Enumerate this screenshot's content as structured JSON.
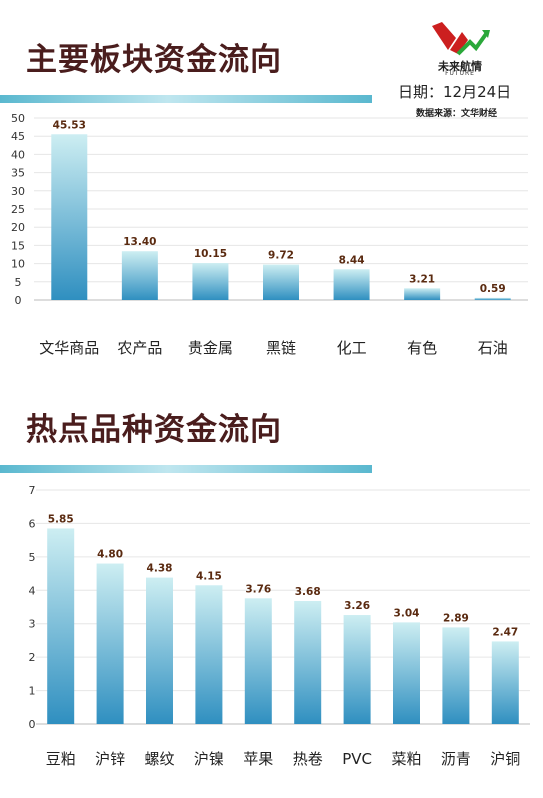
{
  "header": {
    "logo_text": "未来航情",
    "logo_sub": "FUTURE",
    "date": "日期：12月24日",
    "source": "数据来源：文华财经"
  },
  "colors": {
    "title": "#4a1d1d",
    "bar_top": "#cdeef2",
    "bar_bottom": "#2f8fc0",
    "stripe_light": "#bfe6ef",
    "stripe_dark": "#5ab8cf"
  },
  "chart_data": [
    {
      "type": "bar",
      "title": "主要板块资金流向",
      "categories": [
        "文华商品",
        "农产品",
        "贵金属",
        "黑链",
        "化工",
        "有色",
        "石油"
      ],
      "values": [
        45.53,
        13.4,
        10.15,
        9.72,
        8.44,
        3.21,
        0.59
      ],
      "value_labels": [
        "45.53",
        "13.40",
        "10.15",
        "9.72",
        "8.44",
        "3.21",
        "0.59"
      ],
      "yticks": [
        "50",
        "45",
        "40",
        "35",
        "30",
        "25",
        "20",
        "15",
        "10",
        "5",
        "0"
      ],
      "ylim": [
        0,
        50
      ],
      "grid": true
    },
    {
      "type": "bar",
      "title": "热点品种资金流向",
      "categories": [
        "豆粕",
        "沪锌",
        "螺纹",
        "沪镍",
        "苹果",
        "热卷",
        "PVC",
        "菜粕",
        "沥青",
        "沪铜"
      ],
      "values": [
        5.85,
        4.8,
        4.38,
        4.15,
        3.76,
        3.68,
        3.26,
        3.04,
        2.89,
        2.47
      ],
      "value_labels": [
        "5.85",
        "4.80",
        "4.38",
        "4.15",
        "3.76",
        "3.68",
        "3.26",
        "3.04",
        "2.89",
        "2.47"
      ],
      "yticks": [
        "7",
        "6",
        "5",
        "4",
        "3",
        "2",
        "1",
        "0"
      ],
      "ylim": [
        0,
        7
      ],
      "grid": true
    }
  ]
}
